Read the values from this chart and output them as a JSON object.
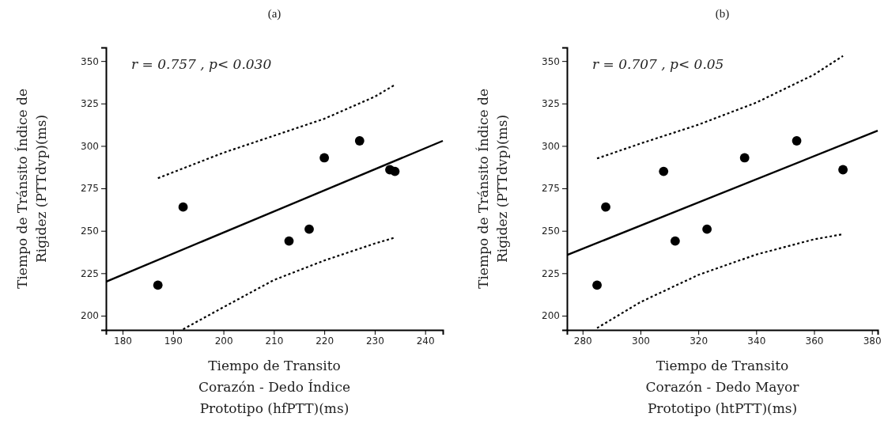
{
  "chart_data": [
    {
      "type": "scatter",
      "title": "(a)",
      "xlabel": "Tiempo de Transito Corazón - Dedo Índice Prototipo (hfPTT)(ms)",
      "ylabel": "Tiempo de Tránsito Índice de Rigidez (PTTdvp)(ms)",
      "annotations": [
        "r = 0.757 , p< 0.030"
      ],
      "xlim": [
        176.7,
        243.5
      ],
      "xticks": [
        180,
        190,
        200,
        210,
        220,
        230,
        240
      ],
      "ylim": [
        191.6,
        358
      ],
      "yticks": [
        200,
        225,
        250,
        275,
        300,
        325,
        350
      ],
      "series": [
        {
          "marker": "circle",
          "color": "#000000",
          "x": [
            187,
            192,
            213,
            217,
            220,
            227,
            233,
            234
          ],
          "values": [
            218,
            264,
            244,
            251,
            293,
            303,
            286,
            285
          ]
        },
        {
          "type": "line",
          "color": "#000000",
          "line_style": "solid",
          "x": [
            176.7,
            243.5
          ],
          "values": [
            220,
            303
          ]
        },
        {
          "type": "line",
          "color": "#000000",
          "line_style": "dotted",
          "x": [
            187,
            200,
            210,
            220,
            230,
            234
          ],
          "values": [
            281,
            296,
            306,
            316,
            329,
            336
          ]
        },
        {
          "type": "line",
          "color": "#000000",
          "line_style": "dotted",
          "x": [
            192,
            200,
            210,
            220,
            230,
            234
          ],
          "values": [
            192,
            205,
            221,
            232.5,
            242.5,
            246
          ]
        }
      ]
    },
    {
      "type": "scatter",
      "title": "(b)",
      "xlabel": "Tiempo de Transito Corazón - Dedo Mayor Prototipo (htPTT)(ms)",
      "ylabel": "Tiempo de Tránsito Índice de Rigidez (PTTdvp)(ms)",
      "annotations": [
        "r = 0.707 , p< 0.05"
      ],
      "xlim": [
        274.6,
        382
      ],
      "xticks": [
        280,
        300,
        320,
        340,
        360,
        380
      ],
      "ylim": [
        191.6,
        358
      ],
      "yticks": [
        200,
        225,
        250,
        275,
        300,
        325,
        350
      ],
      "series": [
        {
          "marker": "circle",
          "color": "#000000",
          "x": [
            285,
            288,
            308,
            312,
            323,
            336,
            354,
            370
          ],
          "values": [
            218,
            264,
            285,
            244,
            251,
            293,
            303,
            286
          ]
        },
        {
          "type": "line",
          "color": "#000000",
          "line_style": "solid",
          "x": [
            274.6,
            382
          ],
          "values": [
            235.7,
            309
          ]
        },
        {
          "type": "line",
          "color": "#000000",
          "line_style": "dotted",
          "x": [
            285,
            300,
            320,
            340,
            360,
            370
          ],
          "values": [
            292.6,
            301.4,
            312.5,
            325.5,
            342,
            353
          ]
        },
        {
          "type": "line",
          "color": "#000000",
          "line_style": "dotted",
          "x": [
            285,
            300,
            320,
            340,
            360,
            370
          ],
          "values": [
            192.7,
            208,
            224,
            236,
            245,
            248
          ]
        }
      ]
    }
  ]
}
